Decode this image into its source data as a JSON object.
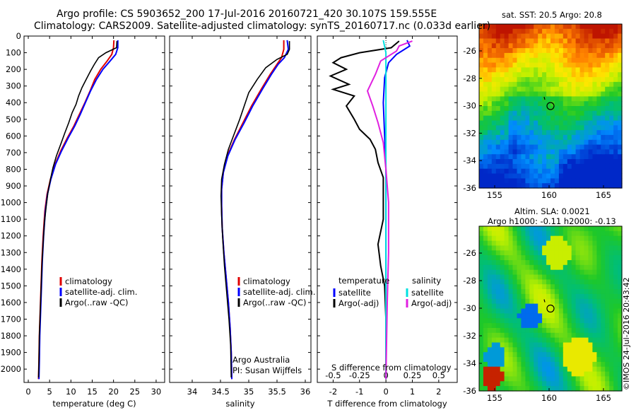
{
  "header": {
    "line1": "Argo profile: CS 5903652_200 17-Jul-2016 20160721_420 30.107S 159.555E",
    "line2": "Climatology: CARS2009. Satellite-adjusted climatology: synTS_20160717.nc (0.033d earlier)"
  },
  "colors": {
    "climatology": "#e00000",
    "satellite": "#0000ff",
    "argo": "#000000",
    "sat_s": "#00e0e0",
    "argo_s": "#e020e0"
  },
  "depth_ticks": [
    0,
    100,
    200,
    300,
    400,
    500,
    600,
    700,
    800,
    900,
    1000,
    1100,
    1200,
    1300,
    1400,
    1500,
    1600,
    1700,
    1800,
    1900,
    2000
  ],
  "chart_data": [
    {
      "type": "line",
      "xlabel": "temperature (deg C)",
      "xlim": [
        -1,
        32
      ],
      "ylim": [
        2080,
        0
      ],
      "xticks": [
        0,
        5,
        10,
        15,
        20,
        25,
        30
      ],
      "legend": [
        "climatology",
        "satellite-adj. clim.",
        "Argo(..raw -QC)"
      ],
      "series": [
        {
          "name": "climatology",
          "color": "#e00000",
          "points": [
            [
              20.1,
              25
            ],
            [
              20.0,
              70
            ],
            [
              19.6,
              110
            ],
            [
              18.5,
              150
            ],
            [
              17.0,
              200
            ],
            [
              15.6,
              260
            ],
            [
              14.5,
              330
            ],
            [
              13.3,
              400
            ],
            [
              12.0,
              470
            ],
            [
              10.7,
              540
            ],
            [
              9.2,
              610
            ],
            [
              7.6,
              690
            ],
            [
              6.3,
              770
            ],
            [
              5.2,
              860
            ],
            [
              4.4,
              950
            ],
            [
              3.9,
              1050
            ],
            [
              3.5,
              1200
            ],
            [
              3.2,
              1350
            ],
            [
              3.0,
              1500
            ],
            [
              2.8,
              1650
            ],
            [
              2.6,
              1800
            ],
            [
              2.5,
              1950
            ],
            [
              2.4,
              2060
            ]
          ]
        },
        {
          "name": "satellite-adj. clim.",
          "color": "#0000ff",
          "points": [
            [
              21.0,
              25
            ],
            [
              21.0,
              70
            ],
            [
              20.5,
              110
            ],
            [
              19.2,
              150
            ],
            [
              17.5,
              200
            ],
            [
              16.0,
              260
            ],
            [
              14.6,
              330
            ],
            [
              13.4,
              400
            ],
            [
              12.2,
              470
            ],
            [
              10.9,
              540
            ],
            [
              9.4,
              610
            ],
            [
              7.8,
              690
            ],
            [
              6.4,
              770
            ],
            [
              5.3,
              860
            ],
            [
              4.5,
              950
            ],
            [
              4.0,
              1050
            ],
            [
              3.6,
              1200
            ],
            [
              3.3,
              1350
            ],
            [
              3.1,
              1500
            ],
            [
              2.9,
              1650
            ],
            [
              2.7,
              1800
            ],
            [
              2.6,
              1950
            ],
            [
              2.5,
              2060
            ]
          ]
        },
        {
          "name": "Argo(..raw -QC)",
          "color": "#000000",
          "points": [
            [
              20.8,
              30
            ],
            [
              20.7,
              70
            ],
            [
              18.2,
              100
            ],
            [
              16.5,
              130
            ],
            [
              15.5,
              170
            ],
            [
              14.6,
              210
            ],
            [
              13.6,
              260
            ],
            [
              12.6,
              310
            ],
            [
              11.8,
              360
            ],
            [
              11.2,
              410
            ],
            [
              10.3,
              460
            ],
            [
              9.5,
              520
            ],
            [
              8.6,
              580
            ],
            [
              7.6,
              650
            ],
            [
              6.6,
              720
            ],
            [
              5.8,
              790
            ],
            [
              5.2,
              860
            ],
            [
              4.6,
              940
            ],
            [
              4.2,
              1020
            ],
            [
              3.8,
              1120
            ],
            [
              3.5,
              1240
            ],
            [
              3.2,
              1380
            ],
            [
              3.0,
              1520
            ],
            [
              2.8,
              1660
            ],
            [
              2.6,
              1800
            ],
            [
              2.5,
              1950
            ],
            [
              2.4,
              2050
            ]
          ]
        }
      ]
    },
    {
      "type": "line",
      "xlabel": "salinity",
      "xlim": [
        33.6,
        36.1
      ],
      "ylim": [
        2080,
        0
      ],
      "xticks": [
        34,
        34.5,
        35,
        35.5,
        36
      ],
      "legend": [
        "climatology",
        "satellite-adj. clim.",
        "Argo(..raw -QC)"
      ],
      "annotation": [
        "Argo Australia",
        "PI: Susan Wijffels"
      ],
      "series": [
        {
          "name": "climatology",
          "color": "#e00000",
          "points": [
            [
              35.62,
              25
            ],
            [
              35.62,
              80
            ],
            [
              35.58,
              130
            ],
            [
              35.5,
              170
            ],
            [
              35.38,
              230
            ],
            [
              35.22,
              320
            ],
            [
              35.05,
              420
            ],
            [
              34.9,
              520
            ],
            [
              34.75,
              620
            ],
            [
              34.62,
              720
            ],
            [
              34.55,
              820
            ],
            [
              34.52,
              920
            ],
            [
              34.52,
              1020
            ],
            [
              34.53,
              1150
            ],
            [
              34.56,
              1300
            ],
            [
              34.6,
              1450
            ],
            [
              34.64,
              1600
            ],
            [
              34.67,
              1750
            ],
            [
              34.69,
              1900
            ],
            [
              34.7,
              2060
            ]
          ]
        },
        {
          "name": "satellite-adj. clim.",
          "color": "#0000ff",
          "points": [
            [
              35.68,
              25
            ],
            [
              35.7,
              80
            ],
            [
              35.63,
              130
            ],
            [
              35.52,
              170
            ],
            [
              35.4,
              230
            ],
            [
              35.24,
              320
            ],
            [
              35.07,
              420
            ],
            [
              34.92,
              520
            ],
            [
              34.76,
              620
            ],
            [
              34.63,
              720
            ],
            [
              34.55,
              820
            ],
            [
              34.52,
              920
            ],
            [
              34.52,
              1020
            ],
            [
              34.53,
              1150
            ],
            [
              34.56,
              1300
            ],
            [
              34.6,
              1450
            ],
            [
              34.64,
              1600
            ],
            [
              34.67,
              1750
            ],
            [
              34.69,
              1900
            ],
            [
              34.7,
              2060
            ]
          ]
        },
        {
          "name": "Argo(..raw -QC)",
          "color": "#000000",
          "points": [
            [
              35.72,
              30
            ],
            [
              35.72,
              80
            ],
            [
              35.68,
              110
            ],
            [
              35.5,
              140
            ],
            [
              35.3,
              190
            ],
            [
              35.15,
              260
            ],
            [
              35.0,
              340
            ],
            [
              34.92,
              420
            ],
            [
              34.84,
              500
            ],
            [
              34.74,
              590
            ],
            [
              34.64,
              680
            ],
            [
              34.57,
              770
            ],
            [
              34.52,
              860
            ],
            [
              34.51,
              960
            ],
            [
              34.52,
              1080
            ],
            [
              34.54,
              1220
            ],
            [
              34.57,
              1380
            ],
            [
              34.61,
              1540
            ],
            [
              34.65,
              1700
            ],
            [
              34.68,
              1860
            ],
            [
              34.69,
              2050
            ]
          ]
        }
      ]
    },
    {
      "type": "line",
      "xlabel": "T difference from climatology",
      "xlabel_top": "S difference from climatology",
      "xlim": [
        -2.6,
        2.7
      ],
      "ylim": [
        2080,
        0
      ],
      "xticks": [
        -2,
        -1,
        0,
        1,
        2
      ],
      "xticks_top": [
        "-0.5",
        "-0.25",
        "0",
        "0.25",
        "0.5"
      ],
      "legend_left_title": "temperature",
      "legend_right_title": "salinity",
      "legend_left": [
        "satellite",
        "Argo(-adj)"
      ],
      "legend_right": [
        "satellite",
        "Argo(-adj)"
      ],
      "series": [
        {
          "name": "satellite",
          "color": "#0000ff",
          "points": [
            [
              0.8,
              25
            ],
            [
              0.9,
              60
            ],
            [
              0.4,
              110
            ],
            [
              0.1,
              160
            ],
            [
              -0.05,
              250
            ],
            [
              -0.1,
              400
            ],
            [
              -0.05,
              600
            ],
            [
              0,
              800
            ],
            [
              0,
              1200
            ],
            [
              0,
              1600
            ],
            [
              0,
              2060
            ]
          ]
        },
        {
          "name": "Argo(-adj)",
          "color": "#000000",
          "points": [
            [
              0.5,
              30
            ],
            [
              0.2,
              70
            ],
            [
              -1.0,
              100
            ],
            [
              -1.7,
              130
            ],
            [
              -2.0,
              160
            ],
            [
              -1.5,
              200
            ],
            [
              -2.1,
              240
            ],
            [
              -1.4,
              290
            ],
            [
              -2.0,
              320
            ],
            [
              -1.2,
              360
            ],
            [
              -1.5,
              420
            ],
            [
              -1.2,
              500
            ],
            [
              -1.0,
              560
            ],
            [
              -0.6,
              620
            ],
            [
              -0.4,
              680
            ],
            [
              -0.3,
              760
            ],
            [
              -0.1,
              850
            ],
            [
              -0.1,
              950
            ],
            [
              -0.1,
              1100
            ],
            [
              -0.3,
              1250
            ],
            [
              -0.2,
              1380
            ],
            [
              -0.05,
              1500
            ],
            [
              0,
              1700
            ],
            [
              0,
              2060
            ]
          ]
        },
        {
          "name": "satellite",
          "color": "#00e0e0",
          "points": [
            [
              -0.1,
              25
            ],
            [
              0,
              100
            ],
            [
              0,
              300
            ],
            [
              0,
              600
            ],
            [
              0,
              1000
            ],
            [
              0,
              1500
            ],
            [
              0,
              2060
            ]
          ]
        },
        {
          "name": "Argo(-adj)",
          "color": "#e020e0",
          "points": [
            [
              1.0,
              30
            ],
            [
              0.5,
              60
            ],
            [
              0.4,
              90
            ],
            [
              -0.2,
              150
            ],
            [
              -0.4,
              230
            ],
            [
              -0.7,
              330
            ],
            [
              -0.5,
              420
            ],
            [
              -0.3,
              520
            ],
            [
              -0.1,
              640
            ],
            [
              0,
              800
            ],
            [
              0.1,
              1000
            ],
            [
              0.1,
              1300
            ],
            [
              0.05,
              1600
            ],
            [
              0,
              2060
            ]
          ]
        }
      ]
    }
  ],
  "maps": [
    {
      "title": "sat. SST: 20.5 Argo: 20.8",
      "xticks": [
        "155",
        "160",
        "165"
      ],
      "yticks": [
        "-26",
        "-28",
        "-30",
        "-32",
        "-34",
        "-36"
      ],
      "kind": "sst"
    },
    {
      "title": "Altim. SLA: 0.0021",
      "subtitle": "Argo h1000: -0.11 h2000: -0.13",
      "xticks": [
        "155",
        "160",
        "165"
      ],
      "yticks": [
        "-26",
        "-28",
        "-30",
        "-32",
        "-34",
        "-36"
      ],
      "kind": "sla"
    }
  ],
  "watermark": "©IMOS 24-Jul-2016 20:43:42"
}
